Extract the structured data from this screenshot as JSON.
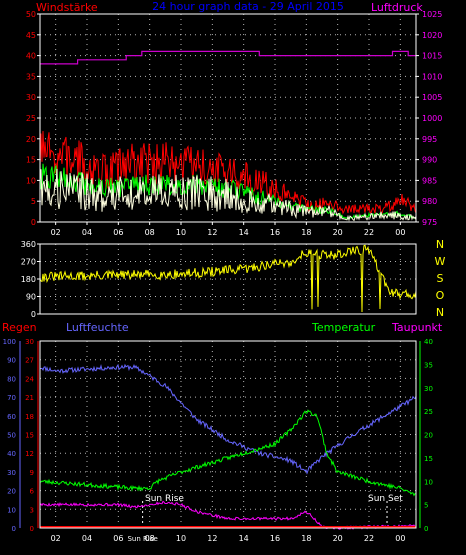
{
  "header": {
    "left_label": "Windstärke",
    "title": "24 hour graph data - 29 April 2015",
    "right_label": "Luftdruck"
  },
  "compass_labels": [
    "N",
    "W",
    "S",
    "O",
    "N"
  ],
  "lower_labels": {
    "regen": "Regen",
    "luftfeuchte": "Luftfeuchte",
    "temperatur": "Temperatur",
    "taupunkt": "Taupunkt",
    "sun_rise": "Sun Rise",
    "sun_set": "Sun Set"
  },
  "colors": {
    "background": "#000000",
    "axis": "#ffffff",
    "grid": "#ffffff",
    "wind_gust": "#ff0000",
    "wind_avg": "#00ff00",
    "wind_speed": "#ffffe0",
    "pressure": "#cc00cc",
    "direction": "#ffff00",
    "humidity": "#6666ff",
    "temperature": "#00ff00",
    "dewpoint": "#ff00ff",
    "rain": "#ff0000",
    "label_red": "#ff0000",
    "label_blue": "#0000ff",
    "label_magenta": "#ff00ff",
    "label_green": "#00ff00",
    "label_white": "#ffffff"
  },
  "chart_data": [
    {
      "type": "line",
      "panel": "wind-pressure",
      "x_ticks": [
        "02",
        "04",
        "06",
        "08",
        "10",
        "12",
        "14",
        "16",
        "18",
        "20",
        "22",
        "00"
      ],
      "y_left_ticks": [
        "0",
        "5",
        "10",
        "15",
        "20",
        "25",
        "30",
        "35",
        "40",
        "45",
        "50"
      ],
      "y_left_range": [
        0,
        50
      ],
      "y_right_ticks": [
        "975",
        "980",
        "985",
        "990",
        "995",
        "1000",
        "1005",
        "1010",
        "1015",
        "1020",
        "1025"
      ],
      "y_right_range": [
        975,
        1025
      ],
      "x_range": [
        1,
        25
      ],
      "pressure_steps": [
        [
          1,
          1013
        ],
        [
          3,
          1013
        ],
        [
          3.4,
          1014
        ],
        [
          6.5,
          1015
        ],
        [
          7.5,
          1016
        ],
        [
          15,
          1015
        ],
        [
          23,
          1015
        ],
        [
          23.5,
          1016
        ],
        [
          24.5,
          1015
        ],
        [
          25,
          1015
        ]
      ],
      "wind_gust_profile": [
        [
          1,
          15
        ],
        [
          3,
          14
        ],
        [
          5,
          11
        ],
        [
          7,
          13
        ],
        [
          9,
          13
        ],
        [
          11,
          12
        ],
        [
          13,
          11
        ],
        [
          15,
          9
        ],
        [
          16,
          7
        ],
        [
          17,
          6
        ],
        [
          18,
          4
        ],
        [
          19.5,
          4
        ],
        [
          20.5,
          3
        ],
        [
          23,
          3
        ],
        [
          24,
          5
        ],
        [
          25,
          3
        ]
      ],
      "wind_avg_profile": [
        [
          1,
          11
        ],
        [
          3,
          10
        ],
        [
          5,
          8
        ],
        [
          7,
          9
        ],
        [
          9,
          9
        ],
        [
          11,
          9
        ],
        [
          13,
          8
        ],
        [
          15,
          6
        ],
        [
          16,
          5
        ],
        [
          17,
          4
        ],
        [
          18,
          3
        ],
        [
          19.5,
          3
        ],
        [
          20.5,
          1
        ],
        [
          23,
          2
        ],
        [
          24,
          2
        ],
        [
          25,
          1
        ]
      ],
      "grid": true
    },
    {
      "type": "line",
      "panel": "wind-direction",
      "y_left_ticks": [
        "0",
        "90",
        "180",
        "270",
        "360"
      ],
      "y_range": [
        0,
        360
      ],
      "x_range": [
        1,
        25
      ],
      "direction_profile": [
        [
          1,
          190
        ],
        [
          6,
          200
        ],
        [
          10,
          205
        ],
        [
          14,
          230
        ],
        [
          16,
          260
        ],
        [
          17,
          265
        ],
        [
          18,
          320
        ],
        [
          19.5,
          300
        ],
        [
          21,
          325
        ],
        [
          22,
          330
        ],
        [
          23.3,
          110
        ],
        [
          25,
          100
        ]
      ],
      "grid": true
    },
    {
      "type": "line",
      "panel": "humidity-temperature",
      "x_ticks": [
        "02",
        "04",
        "06",
        "Sun Rise",
        "08",
        "10",
        "12",
        "14",
        "16",
        "18",
        "20",
        "22",
        "00"
      ],
      "y_left1_ticks": [
        "0",
        "10",
        "20",
        "30",
        "40",
        "50",
        "60",
        "70",
        "80",
        "90",
        "100"
      ],
      "y_left2_ticks": [
        "0",
        "3",
        "6",
        "9",
        "12",
        "15",
        "18",
        "21",
        "24",
        "27",
        "30"
      ],
      "y_right_ticks": [
        "0",
        "5",
        "10",
        "15",
        "20",
        "25",
        "30",
        "35",
        "40"
      ],
      "humidity_range": [
        0,
        100
      ],
      "temp_range": [
        0,
        40
      ],
      "x_range": [
        1,
        25
      ],
      "humidity": [
        [
          1,
          86
        ],
        [
          2,
          84
        ],
        [
          4,
          85
        ],
        [
          6,
          86
        ],
        [
          7,
          86
        ],
        [
          7.5,
          84
        ],
        [
          9,
          76
        ],
        [
          11,
          58
        ],
        [
          13,
          47
        ],
        [
          15,
          40
        ],
        [
          17,
          36
        ],
        [
          18,
          30
        ],
        [
          19,
          38
        ],
        [
          21,
          50
        ],
        [
          23,
          60
        ],
        [
          25,
          70
        ]
      ],
      "temperature": [
        [
          1,
          10
        ],
        [
          3,
          9.5
        ],
        [
          5,
          9
        ],
        [
          7,
          8.5
        ],
        [
          8,
          8.5
        ],
        [
          8.5,
          10
        ],
        [
          10,
          12
        ],
        [
          12,
          14
        ],
        [
          14,
          16
        ],
        [
          16,
          18
        ],
        [
          17,
          21
        ],
        [
          18,
          25
        ],
        [
          18.7,
          24
        ],
        [
          19.3,
          16
        ],
        [
          20,
          12
        ],
        [
          22,
          10
        ],
        [
          24,
          8.5
        ],
        [
          25,
          7
        ]
      ],
      "dewpoint": [
        [
          1,
          5
        ],
        [
          4,
          5
        ],
        [
          6,
          5
        ],
        [
          7,
          4.5
        ],
        [
          8,
          5
        ],
        [
          9,
          5.5
        ],
        [
          10,
          5
        ],
        [
          11,
          3.5
        ],
        [
          13,
          2
        ],
        [
          15,
          2
        ],
        [
          17,
          2
        ],
        [
          18,
          3.5
        ],
        [
          18.5,
          2
        ],
        [
          19,
          0.2
        ],
        [
          20,
          0
        ],
        [
          25,
          0.5
        ]
      ],
      "rain": [
        [
          1,
          0
        ],
        [
          25,
          0
        ]
      ],
      "sun_rise_x": 7.55,
      "sun_set_x": 23.15,
      "grid": true
    }
  ]
}
